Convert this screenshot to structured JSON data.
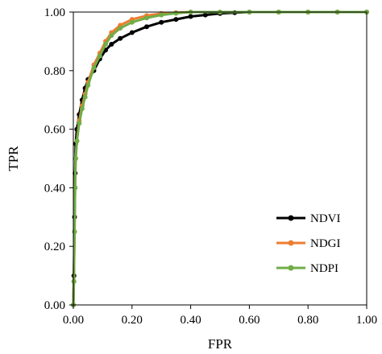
{
  "chart_data": {
    "type": "line",
    "xlabel": "FPR",
    "ylabel": "TPR",
    "xlim": [
      0,
      1
    ],
    "ylim": [
      0,
      1
    ],
    "x_ticks": [
      "0.00",
      "0.20",
      "0.40",
      "0.60",
      "0.80",
      "1.00"
    ],
    "y_ticks": [
      "0.00",
      "0.20",
      "0.40",
      "0.60",
      "0.80",
      "1.00"
    ],
    "grid": false,
    "legend_position": "bottom-right",
    "series": [
      {
        "name": "NDVI",
        "color": "#000000",
        "points": [
          [
            0,
            0
          ],
          [
            0.002,
            0.1
          ],
          [
            0.004,
            0.3
          ],
          [
            0.006,
            0.45
          ],
          [
            0.008,
            0.55
          ],
          [
            0.012,
            0.6
          ],
          [
            0.02,
            0.65
          ],
          [
            0.03,
            0.7
          ],
          [
            0.04,
            0.74
          ],
          [
            0.05,
            0.77
          ],
          [
            0.07,
            0.8
          ],
          [
            0.09,
            0.84
          ],
          [
            0.11,
            0.87
          ],
          [
            0.13,
            0.89
          ],
          [
            0.16,
            0.91
          ],
          [
            0.2,
            0.93
          ],
          [
            0.25,
            0.95
          ],
          [
            0.3,
            0.965
          ],
          [
            0.35,
            0.975
          ],
          [
            0.4,
            0.985
          ],
          [
            0.45,
            0.99
          ],
          [
            0.5,
            0.995
          ],
          [
            0.55,
            0.998
          ],
          [
            0.6,
            1.0
          ],
          [
            0.7,
            1.0
          ],
          [
            0.8,
            1.0
          ],
          [
            0.9,
            1.0
          ],
          [
            1.0,
            1.0
          ]
        ]
      },
      {
        "name": "NDGI",
        "color": "#ED7D31",
        "points": [
          [
            0,
            0
          ],
          [
            0.002,
            0.08
          ],
          [
            0.004,
            0.25
          ],
          [
            0.006,
            0.4
          ],
          [
            0.008,
            0.5
          ],
          [
            0.012,
            0.56
          ],
          [
            0.02,
            0.63
          ],
          [
            0.03,
            0.68
          ],
          [
            0.04,
            0.72
          ],
          [
            0.05,
            0.76
          ],
          [
            0.07,
            0.82
          ],
          [
            0.09,
            0.86
          ],
          [
            0.11,
            0.9
          ],
          [
            0.13,
            0.93
          ],
          [
            0.16,
            0.955
          ],
          [
            0.2,
            0.975
          ],
          [
            0.25,
            0.988
          ],
          [
            0.3,
            0.995
          ],
          [
            0.35,
            0.998
          ],
          [
            0.4,
            1.0
          ],
          [
            0.5,
            1.0
          ],
          [
            0.6,
            1.0
          ],
          [
            0.7,
            1.0
          ],
          [
            0.8,
            1.0
          ],
          [
            0.9,
            1.0
          ],
          [
            1.0,
            1.0
          ]
        ]
      },
      {
        "name": "NDPI",
        "color": "#70AD47",
        "points": [
          [
            0,
            0
          ],
          [
            0.002,
            0.08
          ],
          [
            0.004,
            0.25
          ],
          [
            0.006,
            0.4
          ],
          [
            0.008,
            0.5
          ],
          [
            0.012,
            0.56
          ],
          [
            0.02,
            0.62
          ],
          [
            0.03,
            0.67
          ],
          [
            0.04,
            0.71
          ],
          [
            0.05,
            0.75
          ],
          [
            0.07,
            0.81
          ],
          [
            0.09,
            0.85
          ],
          [
            0.11,
            0.89
          ],
          [
            0.13,
            0.92
          ],
          [
            0.16,
            0.945
          ],
          [
            0.2,
            0.965
          ],
          [
            0.25,
            0.98
          ],
          [
            0.3,
            0.99
          ],
          [
            0.35,
            0.996
          ],
          [
            0.4,
            1.0
          ],
          [
            0.5,
            1.0
          ],
          [
            0.6,
            1.0
          ],
          [
            0.7,
            1.0
          ],
          [
            0.8,
            1.0
          ],
          [
            0.9,
            1.0
          ],
          [
            1.0,
            1.0
          ]
        ]
      }
    ]
  }
}
